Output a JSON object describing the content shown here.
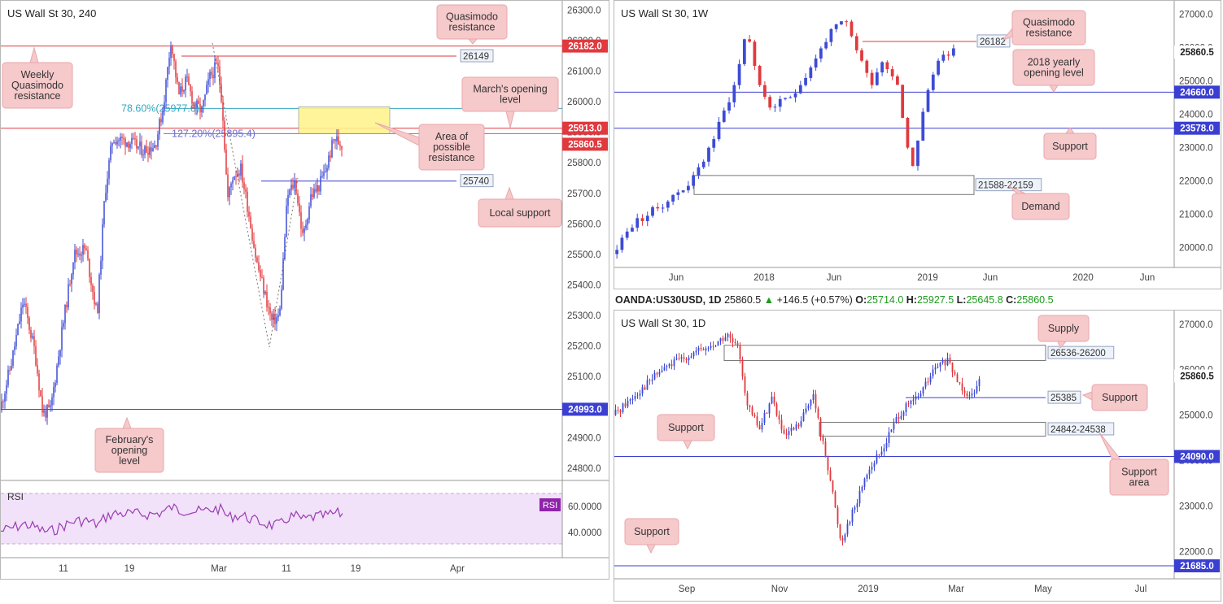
{
  "colors": {
    "up": "#3d4bd6",
    "down": "#e0393e",
    "res_line": "#e0393e",
    "sup_line": "#3b3fd1",
    "fib": "#36a6c2",
    "note_bg": "#f6c9cb",
    "note_border": "#e8a7ab",
    "rsi_line": "#9b3cb3",
    "rsi_fill": "#f1e1f9"
  },
  "panels": {
    "h4": {
      "title": "US Wall St 30, 240",
      "x_ticks": [
        "11",
        "19",
        "Mar",
        "11",
        "19",
        "Apr"
      ],
      "y_ticks": [
        "26300.0",
        "26200.0",
        "26100.0",
        "26000.0",
        "25900.0",
        "25800.0",
        "25700.0",
        "25600.0",
        "25500.0",
        "25400.0",
        "25300.0",
        "25200.0",
        "25100.0",
        "25000.0",
        "24900.0",
        "24800.0"
      ],
      "price_labels": [
        "26182.0",
        "25913.0",
        "25860.5",
        "24993.0"
      ],
      "level_labels": [
        "26149",
        "25740"
      ],
      "fib_labels": [
        "78.60%(25977.6)",
        "127.20%(25895.4)"
      ],
      "zone_label": "Area of possible resistance",
      "notes": [
        "Quasimodo resistance",
        "Weekly Quasimodo resistance",
        "March's opening level",
        "Local support",
        "February's opening level"
      ],
      "rsi": {
        "label": "RSI",
        "badge": "RSI",
        "ticks": [
          "60.0000",
          "40.0000"
        ]
      }
    },
    "w": {
      "title": "US Wall St 30, 1W",
      "x_ticks": [
        "Jun",
        "2018",
        "Jun",
        "2019",
        "Jun",
        "2020",
        "Jun"
      ],
      "y_ticks": [
        "27000.0",
        "26000.0",
        "25000.0",
        "24000.0",
        "23000.0",
        "22000.0",
        "21000.0",
        "20000.0"
      ],
      "price_labels": [
        "25860.5",
        "24660.0",
        "23578.0"
      ],
      "level_labels": [
        "26182",
        "21588-22159"
      ],
      "notes": [
        "Quasimodo resistance",
        "2018 yearly opening level",
        "Support",
        "Demand"
      ]
    },
    "d": {
      "title": "US Wall St 30, 1D",
      "x_ticks": [
        "Sep",
        "Nov",
        "2019",
        "Mar",
        "May",
        "Jul"
      ],
      "y_ticks": [
        "27000.0",
        "26000.0",
        "25000.0",
        "24000.0",
        "23000.0",
        "22000.0"
      ],
      "price_labels": [
        "25860.5",
        "24090.0",
        "21685.0"
      ],
      "level_labels": [
        "26536-26200",
        "25385",
        "24842-24538"
      ],
      "notes": [
        "Supply",
        "Support",
        "Support",
        "Support area",
        "Support"
      ]
    }
  },
  "infobar": {
    "symbol": "OANDA:US30USD, 1D",
    "last": "25860.5",
    "change": "+146.5 (+0.57%)",
    "o_label": "O:",
    "o": "25714.0",
    "h_label": "H:",
    "h": "25927.5",
    "l_label": "L:",
    "l": "25645.8",
    "c_label": "C:",
    "c": "25860.5"
  },
  "chart_data": [
    {
      "type": "candlestick",
      "name": "US Wall St 30, 240",
      "ylim": [
        24760,
        26330
      ],
      "levels": [
        {
          "value": 26182,
          "kind": "resistance"
        },
        {
          "value": 26149,
          "kind": "resistance"
        },
        {
          "value": 25913,
          "kind": "resistance"
        },
        {
          "value": 25740,
          "kind": "support"
        },
        {
          "value": 24993,
          "kind": "support"
        }
      ],
      "fib": [
        {
          "ratio": "78.60%",
          "value": 25977.6
        },
        {
          "ratio": "127.20%",
          "value": 25895.4
        }
      ],
      "zone": [
        25895.4,
        25977.6
      ],
      "last": 25860.5,
      "path": [
        [
          0,
          24990
        ],
        [
          1.5,
          25150
        ],
        [
          3,
          25350
        ],
        [
          4.5,
          25180
        ],
        [
          5.5,
          24980
        ],
        [
          6.5,
          24990
        ],
        [
          8,
          25250
        ],
        [
          9.5,
          25500
        ],
        [
          11,
          25520
        ],
        [
          12.5,
          25300
        ],
        [
          13.5,
          25700
        ],
        [
          14.5,
          25880
        ],
        [
          16.5,
          25870
        ],
        [
          18.5,
          25840
        ],
        [
          20,
          25860
        ],
        [
          21,
          25980
        ],
        [
          22,
          26200
        ],
        [
          23,
          26020
        ],
        [
          24,
          26070
        ],
        [
          25,
          25990
        ],
        [
          26,
          25970
        ],
        [
          27,
          26080
        ],
        [
          28,
          26120
        ],
        [
          28.6,
          26000
        ],
        [
          29.3,
          25680
        ],
        [
          30,
          25760
        ],
        [
          31,
          25780
        ],
        [
          32,
          25640
        ],
        [
          33,
          25480
        ],
        [
          34,
          25380
        ],
        [
          35,
          25280
        ],
        [
          36,
          25300
        ],
        [
          37,
          25690
        ],
        [
          38,
          25740
        ],
        [
          39,
          25550
        ],
        [
          40,
          25690
        ],
        [
          41,
          25720
        ],
        [
          42,
          25780
        ],
        [
          43,
          25880
        ],
        [
          44,
          25860
        ]
      ]
    },
    {
      "type": "candlestick",
      "name": "US Wall St 30, 1W",
      "ylim": [
        19400,
        27400
      ],
      "levels": [
        {
          "value": 26182,
          "kind": "resistance"
        },
        {
          "value": 24660,
          "kind": "support"
        },
        {
          "value": 23578,
          "kind": "support"
        }
      ],
      "zone": [
        21588,
        22159
      ],
      "last": 25860.5,
      "path": [
        [
          0,
          19800
        ],
        [
          4,
          20700
        ],
        [
          8,
          21100
        ],
        [
          12,
          21550
        ],
        [
          16,
          22100
        ],
        [
          20,
          23400
        ],
        [
          24,
          25000
        ],
        [
          26,
          26600
        ],
        [
          28,
          25200
        ],
        [
          30,
          24200
        ],
        [
          34,
          24400
        ],
        [
          38,
          25300
        ],
        [
          42,
          26400
        ],
        [
          45,
          26800
        ],
        [
          48,
          25700
        ],
        [
          50,
          24900
        ],
        [
          52,
          25600
        ],
        [
          55,
          25100
        ],
        [
          57,
          23100
        ],
        [
          58,
          22400
        ],
        [
          60,
          24000
        ],
        [
          62,
          25200
        ],
        [
          64,
          25900
        ],
        [
          66,
          25860
        ]
      ]
    },
    {
      "type": "candlestick",
      "name": "US Wall St 30, 1D",
      "ylim": [
        21400,
        27300
      ],
      "levels": [
        {
          "value": 25385,
          "kind": "support"
        },
        {
          "value": 24090,
          "kind": "support"
        },
        {
          "value": 21685,
          "kind": "support"
        }
      ],
      "zones": [
        [
          26200,
          26536
        ],
        [
          24538,
          24842
        ]
      ],
      "last": 25860.5,
      "path": [
        [
          0,
          25000
        ],
        [
          6,
          25500
        ],
        [
          12,
          26000
        ],
        [
          18,
          26300
        ],
        [
          24,
          26500
        ],
        [
          28,
          26750
        ],
        [
          31,
          26400
        ],
        [
          33,
          25200
        ],
        [
          36,
          24700
        ],
        [
          39,
          25400
        ],
        [
          42,
          24500
        ],
        [
          46,
          24800
        ],
        [
          49,
          25500
        ],
        [
          51,
          24600
        ],
        [
          53,
          23800
        ],
        [
          56,
          22200
        ],
        [
          58,
          22700
        ],
        [
          60,
          23100
        ],
        [
          62,
          23700
        ],
        [
          66,
          24200
        ],
        [
          70,
          25000
        ],
        [
          75,
          25400
        ],
        [
          79,
          26000
        ],
        [
          82,
          26200
        ],
        [
          85,
          25700
        ],
        [
          88,
          25400
        ],
        [
          90,
          25860
        ]
      ]
    }
  ]
}
